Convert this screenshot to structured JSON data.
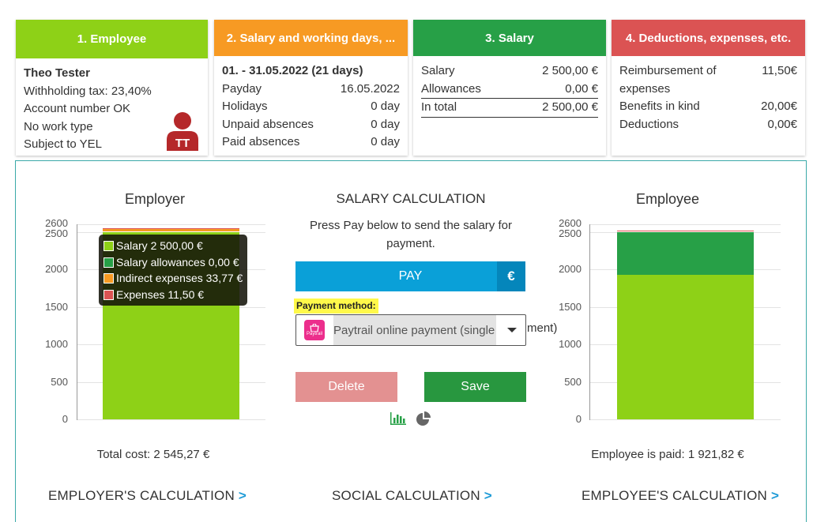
{
  "cards": {
    "employee": {
      "header": "1. Employee",
      "name": "Theo Tester",
      "lines": [
        "Withholding tax: 23,40%",
        "Account number OK",
        "No work type",
        "Subject to YEL"
      ],
      "avatar_initials": "TT"
    },
    "salary_days": {
      "header": "2. Salary and working days, ...",
      "period": "01. - 31.05.2022 (21 days)",
      "rows": [
        {
          "label": "Payday",
          "value": "16.05.2022"
        },
        {
          "label": "Holidays",
          "value": "0 day"
        },
        {
          "label": "Unpaid absences",
          "value": "0 day"
        },
        {
          "label": "Paid absences",
          "value": "0 day"
        }
      ]
    },
    "salary": {
      "header": "3. Salary",
      "rows": [
        {
          "label": "Salary",
          "value": "2 500,00 €"
        },
        {
          "label": "Allowances",
          "value": "0,00 €"
        }
      ],
      "total": {
        "label": "In total",
        "value": "2 500,00 €"
      }
    },
    "deductions": {
      "header": "4. Deductions, expenses, etc.",
      "rows": [
        {
          "label": "Reimbursement of",
          "label2": "expenses",
          "value": "11,50€"
        },
        {
          "label": "Benefits in kind",
          "value": "20,00€"
        },
        {
          "label": "Deductions",
          "value": "0,00€"
        }
      ]
    }
  },
  "main": {
    "center_title": "SALARY CALCULATION",
    "instruction": "Press Pay below to send the salary for payment.",
    "pay_label": "PAY",
    "pay_icon": "€",
    "payment_method_label": "Payment method:",
    "payment_method_value": "Paytrail online payment (single payment)",
    "payment_method_overflow": "ment)",
    "payment_logo_text": "Paytrail",
    "delete_label": "Delete",
    "save_label": "Save",
    "employer_total": "Total cost: 2 545,27 €",
    "employee_paid": "Employee is paid: 1 921,82 €",
    "links": {
      "employer": "EMPLOYER'S CALCULATION",
      "social": "SOCIAL CALCULATION",
      "employee": "EMPLOYEE'S CALCULATION",
      "arrow": ">"
    }
  },
  "colors": {
    "salary": "#8ed117",
    "allowances": "#27a047",
    "indirect": "#f79a23",
    "expenses": "#db5353"
  },
  "chart_data": [
    {
      "type": "bar",
      "title": "Employer",
      "categories": [
        ""
      ],
      "series": [
        {
          "name": "Salary",
          "values": [
            2500.0
          ],
          "label": "Salary 2 500,00 €"
        },
        {
          "name": "Salary allowances",
          "values": [
            0.0
          ],
          "label": "Salary allowances 0,00 €"
        },
        {
          "name": "Indirect expenses",
          "values": [
            33.77
          ],
          "label": "Indirect expenses 33,77 €"
        },
        {
          "name": "Expenses",
          "values": [
            11.5
          ],
          "label": "Expenses 11,50 €"
        }
      ],
      "stacked": true,
      "ylim": [
        0,
        2600
      ],
      "yticks": [
        "0",
        "500",
        "1000",
        "1500",
        "2000",
        "2500",
        "2600"
      ]
    },
    {
      "type": "bar",
      "title": "Employee",
      "categories": [
        ""
      ],
      "series": [
        {
          "values": [
            1921.82
          ]
        },
        {
          "values": [
            578.18
          ]
        },
        {
          "values": [
            11.5
          ]
        }
      ],
      "stacked": true,
      "ylim": [
        0,
        2600
      ],
      "yticks": [
        "0",
        "500",
        "1000",
        "1500",
        "2000",
        "2500",
        "2600"
      ]
    }
  ]
}
